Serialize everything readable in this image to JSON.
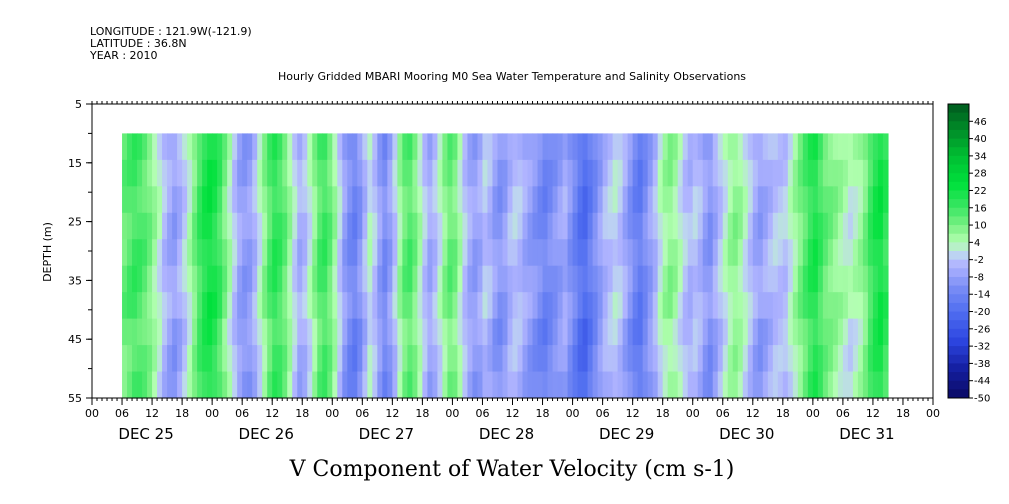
{
  "header": {
    "longitude": "LONGITUDE : 121.9W(-121.9)",
    "latitude": "LATITUDE : 36.8N",
    "year": "YEAR : 2010"
  },
  "chart_data": {
    "type": "heatmap",
    "title": "Hourly Gridded MBARI Mooring M0 Sea Water Temperature and Salinity Observations",
    "xlabel": "V Component of Water Velocity (cm s-1)",
    "ylabel": "DEPTH (m)",
    "y_range": [
      5,
      55
    ],
    "y_inverted": true,
    "y_ticks": [
      "5",
      "15",
      "25",
      "35",
      "45",
      "55"
    ],
    "x_hour_ticks": [
      "00",
      "06",
      "12",
      "18",
      "00",
      "06",
      "12",
      "18",
      "00",
      "06",
      "12",
      "18",
      "00",
      "06",
      "12",
      "18",
      "00",
      "06",
      "12",
      "18",
      "00",
      "06",
      "12",
      "18",
      "00",
      "06",
      "12",
      "18",
      "00"
    ],
    "x_days": [
      "DEC 25",
      "DEC 26",
      "DEC 27",
      "DEC 28",
      "DEC 29",
      "DEC 30",
      "DEC 31"
    ],
    "data_start_hour": 6,
    "data_top_depth": 10,
    "colorbar": {
      "labels": [
        "46",
        "40",
        "34",
        "28",
        "22",
        "16",
        "10",
        "4",
        "-2",
        "-8",
        "-14",
        "-20",
        "-26",
        "-32",
        "-38",
        "-44",
        "-50"
      ],
      "min": -50,
      "max": 52
    },
    "columns_hourly_v": [
      12,
      14,
      16,
      15,
      13,
      10,
      6,
      2,
      -3,
      -6,
      -8,
      -5,
      -1,
      4,
      10,
      16,
      20,
      22,
      20,
      16,
      10,
      4,
      -2,
      -7,
      -9,
      -8,
      -4,
      2,
      8,
      14,
      18,
      16,
      12,
      6,
      0,
      -5,
      -3,
      2,
      8,
      14,
      16,
      12,
      6,
      -1,
      -8,
      -12,
      -14,
      -10,
      -4,
      2,
      -2,
      -8,
      -12,
      -8,
      -2,
      6,
      12,
      14,
      10,
      4,
      -2,
      -6,
      -3,
      2,
      8,
      12,
      10,
      4,
      -2,
      -6,
      -8,
      -6,
      -2,
      -4,
      -8,
      -10,
      -8,
      -4,
      -2,
      -3,
      -6,
      -8,
      -10,
      -12,
      -14,
      -12,
      -10,
      -8,
      -6,
      -10,
      -14,
      -18,
      -20,
      -16,
      -12,
      -8,
      -4,
      -2,
      0,
      -2,
      -6,
      -10,
      -14,
      -16,
      -12,
      -8,
      -4,
      2,
      6,
      8,
      6,
      2,
      -2,
      -4,
      -2,
      -4,
      -8,
      -10,
      -6,
      -2,
      2,
      6,
      8,
      6,
      2,
      -2,
      -6,
      -8,
      -6,
      -4,
      -2,
      -2,
      -2,
      2,
      6,
      10,
      14,
      18,
      20,
      16,
      12,
      10,
      8,
      6,
      4,
      2,
      4,
      6,
      10,
      16,
      20,
      22,
      18
    ]
  },
  "colors": {
    "green_strong": "#00e83c",
    "green_light": "#b2ffb0",
    "blue_light": "#b0b4ff",
    "blue_strong": "#3858f0",
    "blue_deep": "#0a1a90"
  }
}
